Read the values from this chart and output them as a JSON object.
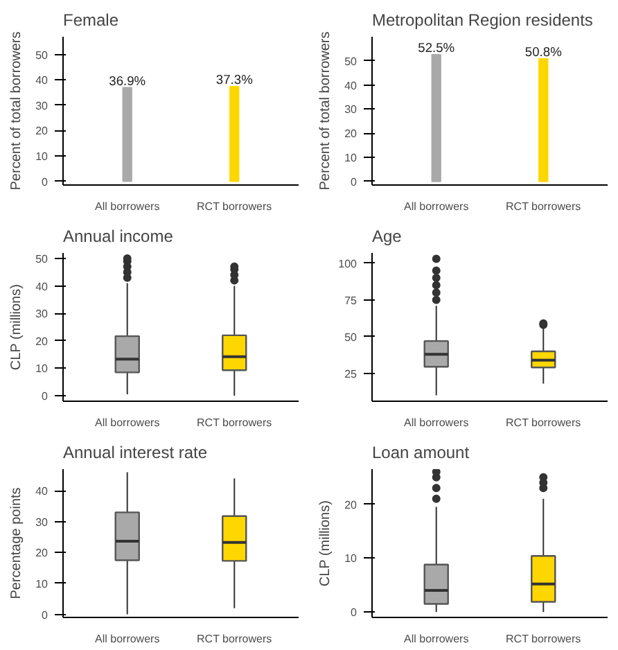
{
  "chart_data": [
    {
      "type": "bar",
      "title": "Female",
      "ylabel": "Percent of total borrowers",
      "categories": [
        "All borrowers",
        "RCT borrowers"
      ],
      "values": [
        36.9,
        37.3
      ],
      "value_labels": [
        "36.9%",
        "37.3%"
      ],
      "colors": [
        "#a9a9a9",
        "#ffd700"
      ],
      "ylim": [
        -1.5,
        57
      ],
      "yticks": [
        0,
        10,
        20,
        30,
        40,
        50
      ],
      "grid": false
    },
    {
      "type": "bar",
      "title": "Metropolitan Region residents",
      "ylabel": "Percent of total borrowers",
      "categories": [
        "All borrowers",
        "RCT borrowers"
      ],
      "values": [
        52.5,
        50.8
      ],
      "value_labels": [
        "52.5%",
        "50.8%"
      ],
      "colors": [
        "#a9a9a9",
        "#ffd700"
      ],
      "ylim": [
        -1.5,
        60
      ],
      "yticks": [
        0,
        10,
        20,
        30,
        40,
        50
      ],
      "grid": false
    },
    {
      "type": "box",
      "title": "Annual income",
      "ylabel": "CLP (millions)",
      "categories": [
        "All borrowers",
        "RCT borrowers"
      ],
      "boxes": [
        {
          "low": 0.5,
          "q1": 8.5,
          "median": 13.3,
          "q3": 21.7,
          "high": 41,
          "outliers": [
            43,
            45,
            47,
            49,
            50
          ]
        },
        {
          "low": 0,
          "q1": 9.3,
          "median": 14.2,
          "q3": 22,
          "high": 40,
          "outliers": [
            42,
            44,
            46,
            47
          ]
        }
      ],
      "colors": [
        "#a9a9a9",
        "#ffd700"
      ],
      "ylim": [
        -2,
        52
      ],
      "yticks": [
        0,
        10,
        20,
        30,
        40,
        50
      ],
      "grid": false
    },
    {
      "type": "box",
      "title": "Age",
      "categories": [
        "All borrowers",
        "RCT borrowers"
      ],
      "boxes": [
        {
          "low": 10,
          "q1": 29.5,
          "median": 38,
          "q3": 47,
          "high": 71,
          "outliers": [
            75,
            80,
            85,
            90,
            95,
            103
          ]
        },
        {
          "low": 18,
          "q1": 29,
          "median": 34,
          "q3": 40,
          "high": 56,
          "outliers": [
            58,
            59
          ]
        }
      ],
      "colors": [
        "#a9a9a9",
        "#ffd700"
      ],
      "ylim": [
        6,
        107
      ],
      "yticks": [
        25,
        50,
        75,
        100
      ],
      "grid": false
    },
    {
      "type": "box",
      "title": "Annual interest rate",
      "ylabel": "Percentage points",
      "categories": [
        "All borrowers",
        "RCT borrowers"
      ],
      "boxes": [
        {
          "low": 0,
          "q1": 17.5,
          "median": 23.7,
          "q3": 33,
          "high": 46
        },
        {
          "low": 2,
          "q1": 17.3,
          "median": 23.3,
          "q3": 31.8,
          "high": 44
        }
      ],
      "colors": [
        "#a9a9a9",
        "#ffd700"
      ],
      "ylim": [
        -1,
        47
      ],
      "yticks": [
        0,
        10,
        20,
        30,
        40
      ],
      "grid": false
    },
    {
      "type": "box",
      "title": "Loan amount",
      "ylabel": "CLP (millions)",
      "categories": [
        "All borrowers",
        "RCT borrowers"
      ],
      "boxes": [
        {
          "low": 0,
          "q1": 1.5,
          "median": 4,
          "q3": 8.8,
          "high": 19.5,
          "outliers": [
            21,
            23,
            25,
            26
          ]
        },
        {
          "low": 0,
          "q1": 1.9,
          "median": 5.2,
          "q3": 10.4,
          "high": 21,
          "outliers": [
            23,
            24,
            25
          ]
        }
      ],
      "colors": [
        "#a9a9a9",
        "#ffd700"
      ],
      "ylim": [
        -1,
        26.5
      ],
      "yticks": [
        0,
        10,
        20
      ],
      "grid": false
    }
  ]
}
